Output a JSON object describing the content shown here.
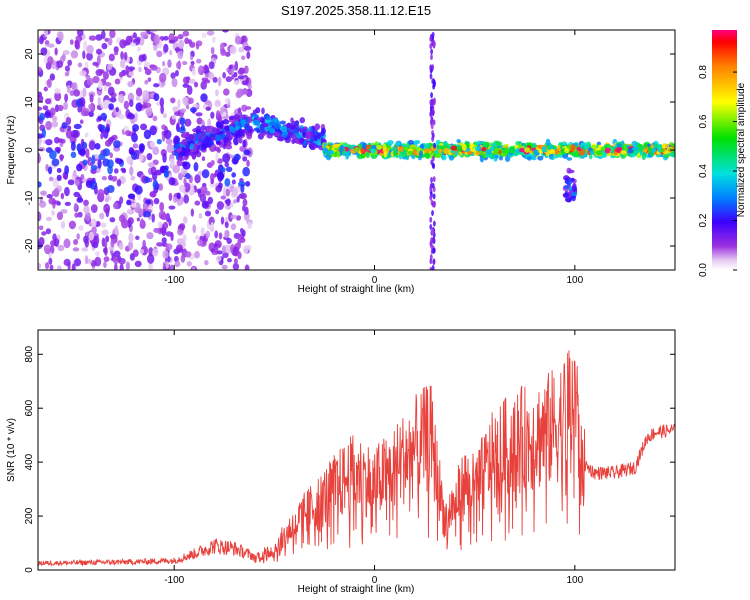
{
  "figure_title": "S197.2025.358.11.12.E15",
  "chart_data": [
    {
      "type": "heatmap",
      "title": "S197.2025.358.11.12.E15",
      "xlabel": "Height of straight line (km)",
      "ylabel": "Frequency (Hz)",
      "xlim": [
        -168,
        150
      ],
      "ylim": [
        -25,
        25
      ],
      "xticks": [
        -100,
        0,
        100
      ],
      "yticks": [
        -20,
        -10,
        0,
        10,
        20
      ],
      "colorbar": {
        "label": "Normalized spectral amplitude",
        "range": [
          0,
          0.97
        ],
        "ticks": [
          0.0,
          0.2,
          0.4,
          0.6,
          0.8
        ]
      },
      "features": [
        {
          "x": [
            -168,
            -62
          ],
          "f_center": 0,
          "f_spread": 25,
          "amplitude": 0.1,
          "note": "diffuse noise cloud"
        },
        {
          "x": [
            -100,
            -60
          ],
          "f_center_start": 0,
          "f_center_end": 6,
          "amplitude": 0.3
        },
        {
          "x": [
            -60,
            -25
          ],
          "f_center_start": 6,
          "f_center_end": 2,
          "amplitude": 0.35
        },
        {
          "x": [
            -25,
            150
          ],
          "f_center": 0,
          "f_spread": 1.2,
          "amplitude": 0.9
        },
        {
          "x": [
            28,
            30
          ],
          "f_center": 0,
          "f_spread": 25,
          "amplitude": 0.15,
          "note": "vertical streak"
        },
        {
          "x": [
            95,
            100
          ],
          "f_center": -8,
          "f_spread": 3,
          "amplitude": 0.3
        }
      ]
    },
    {
      "type": "line",
      "xlabel": "Height of straight line (km)",
      "ylabel": "SNR (10 * v/v)",
      "xlim": [
        -168,
        150
      ],
      "ylim": [
        0,
        890
      ],
      "xticks": [
        -100,
        0,
        100
      ],
      "yticks": [
        0,
        200,
        400,
        600,
        800
      ],
      "series": [
        {
          "name": "SNR",
          "color": "#e8413c",
          "x": [
            -168,
            -140,
            -120,
            -100,
            -90,
            -80,
            -70,
            -60,
            -50,
            -40,
            -30,
            -20,
            -10,
            0,
            10,
            20,
            28,
            35,
            40,
            45,
            50,
            60,
            70,
            80,
            90,
            95,
            100,
            103,
            110,
            120,
            130,
            136,
            140,
            150
          ],
          "y": [
            25,
            28,
            30,
            35,
            60,
            90,
            80,
            50,
            80,
            180,
            250,
            320,
            380,
            340,
            400,
            480,
            520,
            200,
            260,
            340,
            320,
            450,
            500,
            520,
            560,
            600,
            720,
            400,
            360,
            360,
            380,
            490,
            510,
            520
          ]
        }
      ]
    }
  ]
}
